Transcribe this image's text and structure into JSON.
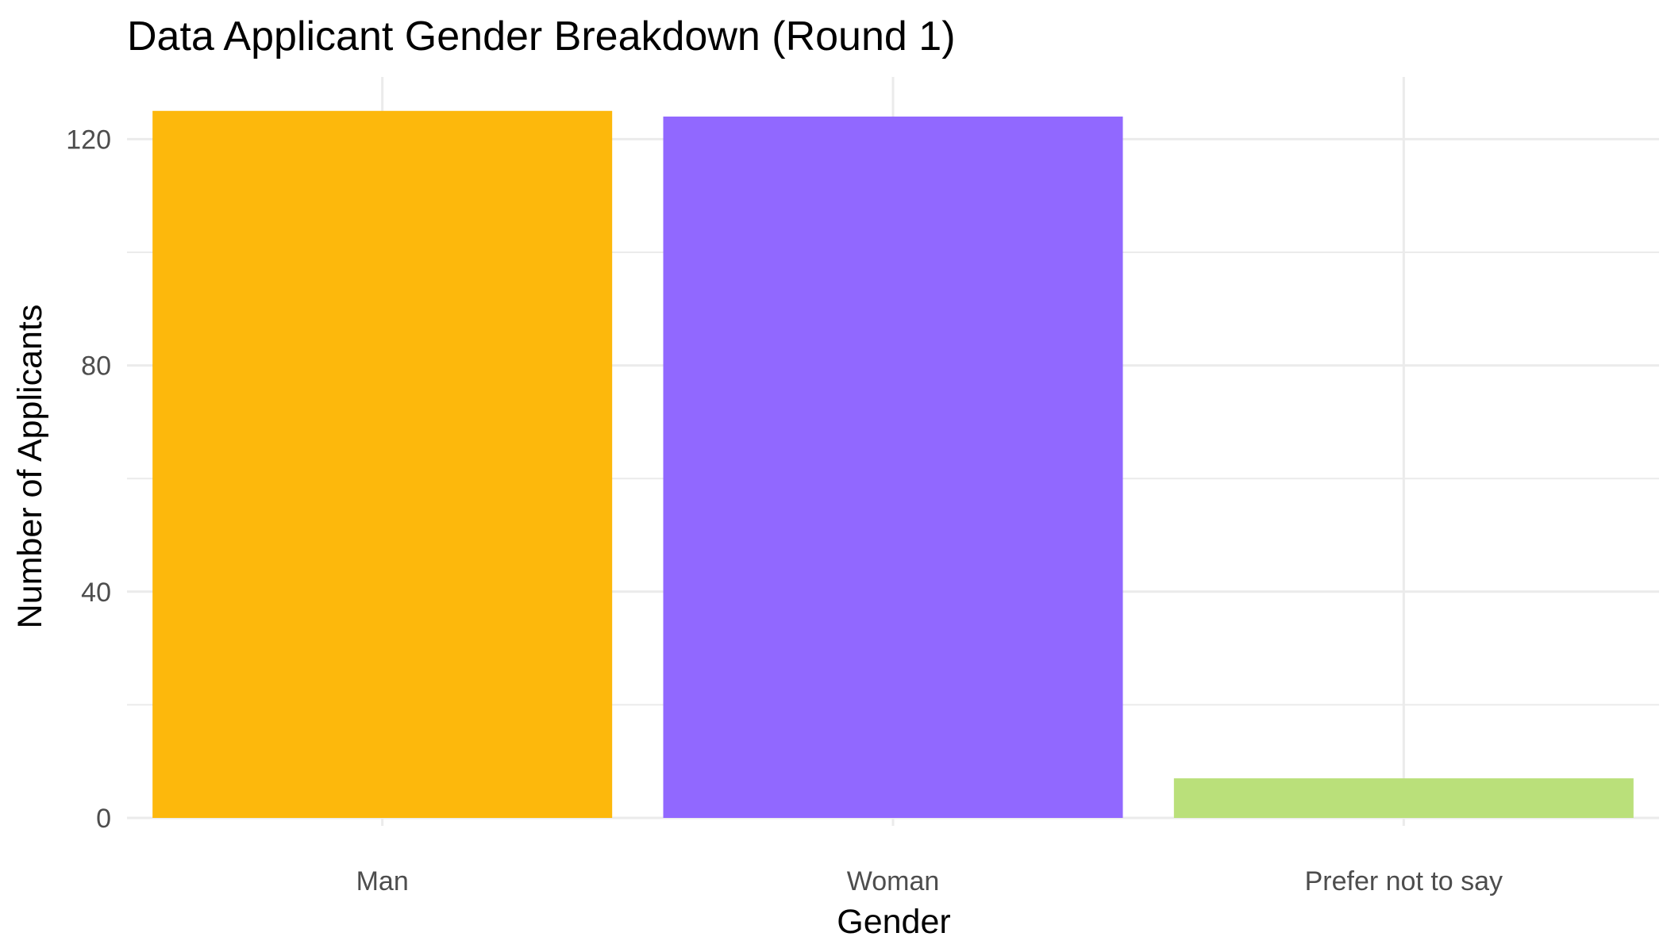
{
  "chart_data": {
    "type": "bar",
    "title": "Data Applicant Gender Breakdown (Round 1)",
    "xlabel": "Gender",
    "ylabel": "Number of Applicants",
    "categories": [
      "Man",
      "Woman",
      "Prefer not to say"
    ],
    "values": [
      125,
      124,
      7
    ],
    "colors": [
      "#FDB80C",
      "#9168FF",
      "#BAE07A"
    ],
    "ylim": [
      0,
      131
    ],
    "yticks": [
      0,
      40,
      80,
      120
    ],
    "yticks_minor": [
      20,
      60,
      100
    ],
    "grid": true,
    "legend": "none"
  }
}
